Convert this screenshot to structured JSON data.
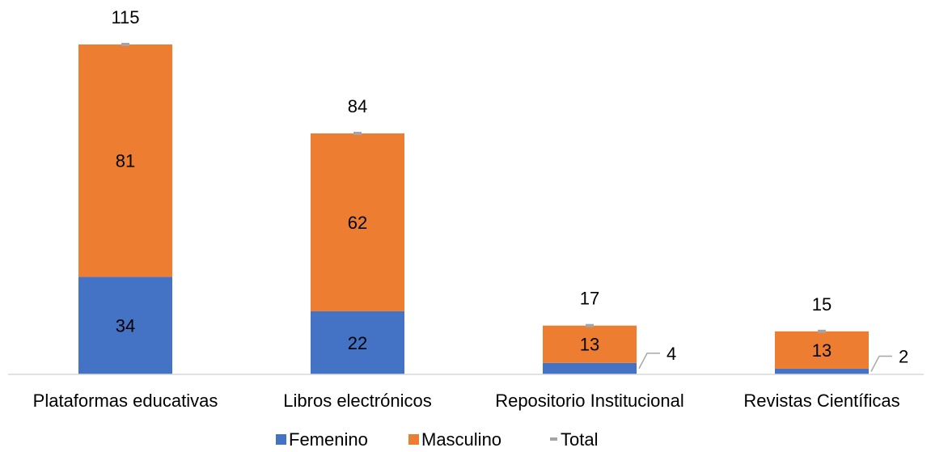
{
  "chart_data": {
    "type": "bar",
    "stacked": true,
    "categories": [
      "Plataformas educativas",
      "Libros electrónicos",
      "Repositorio Institucional",
      "Revistas Científicas"
    ],
    "series": [
      {
        "name": "Femenino",
        "values": [
          34,
          22,
          4,
          2
        ],
        "color": "#4472C4"
      },
      {
        "name": "Masculino",
        "values": [
          81,
          62,
          13,
          13
        ],
        "color": "#ED7D31"
      }
    ],
    "totals": {
      "name": "Total",
      "values": [
        115,
        84,
        17,
        15
      ],
      "color": "#A5A5A5"
    },
    "ylim": [
      0,
      115
    ],
    "grid": false,
    "legend": "bottom",
    "title": "",
    "xlabel": "",
    "ylabel": ""
  }
}
